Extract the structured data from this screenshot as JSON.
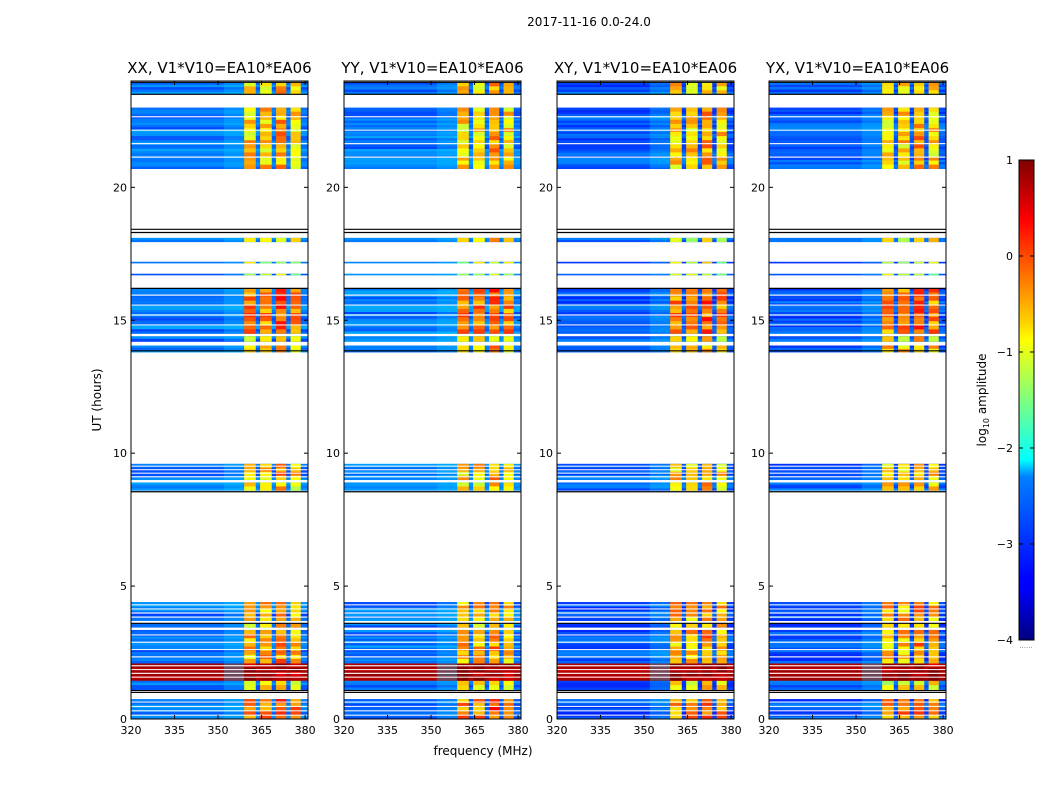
{
  "chart_data": {
    "type": "heatmap",
    "suptitle": "2017-11-16 0.0-24.0",
    "xlabel": "frequency (MHz)",
    "ylabel": "UT (hours)",
    "xlim": [
      320,
      381
    ],
    "ylim": [
      0,
      24
    ],
    "xticks": [
      320,
      335,
      350,
      365,
      380
    ],
    "yticks": [
      0,
      5,
      10,
      15,
      20
    ],
    "colorbar": {
      "label": "log",
      "label_subscript": "10",
      "label_suffix": " amplitude",
      "range": [
        -4,
        1
      ],
      "ticks": [
        1,
        0,
        -1,
        -2,
        -3,
        -4
      ],
      "extra_mark": "......",
      "colormap": "jet"
    },
    "panels": [
      {
        "pol": "XX",
        "title": "XX, V1*V10=EA10*EA06"
      },
      {
        "pol": "YY",
        "title": "YY, V1*V10=EA10*EA06"
      },
      {
        "pol": "XY",
        "title": "XY, V1*V10=EA10*EA06"
      },
      {
        "pol": "YX",
        "title": "YX, V1*V10=EA10*EA06"
      }
    ],
    "time_blocks_hours": [
      {
        "start": 0.0,
        "end": 0.75,
        "level": 0.45
      },
      {
        "start": 1.1,
        "end": 1.45,
        "level": 0.2
      },
      {
        "start": 1.45,
        "end": 2.1,
        "level": 0.95
      },
      {
        "start": 2.1,
        "end": 3.35,
        "level": 0.35
      },
      {
        "start": 3.45,
        "end": 3.6,
        "level": 0.3
      },
      {
        "start": 3.7,
        "end": 4.4,
        "level": 0.35
      },
      {
        "start": 8.6,
        "end": 8.9,
        "level": 0.25
      },
      {
        "start": 9.0,
        "end": 9.6,
        "level": 0.3
      },
      {
        "start": 13.8,
        "end": 14.05,
        "level": 0.3
      },
      {
        "start": 14.2,
        "end": 14.4,
        "level": 0.25
      },
      {
        "start": 14.5,
        "end": 16.2,
        "level": 0.45
      },
      {
        "start": 16.7,
        "end": 16.75,
        "level": 0.1
      },
      {
        "start": 17.15,
        "end": 17.2,
        "level": 0.1
      },
      {
        "start": 17.95,
        "end": 18.1,
        "level": 0.2
      },
      {
        "start": 20.7,
        "end": 23.0,
        "level": 0.3
      },
      {
        "start": 23.5,
        "end": 23.95,
        "level": 0.3
      }
    ],
    "gap_lines_hours": [
      1.0,
      1.07,
      18.3,
      18.42,
      16.2,
      13.85,
      8.55,
      3.6,
      23.95,
      23.5
    ],
    "rfi_band_mhz": [
      359,
      381
    ],
    "rfi_channels_mhz": [
      [
        359,
        363
      ],
      [
        364.5,
        368.5
      ],
      [
        370,
        373.5
      ],
      [
        375,
        378.5
      ]
    ]
  }
}
